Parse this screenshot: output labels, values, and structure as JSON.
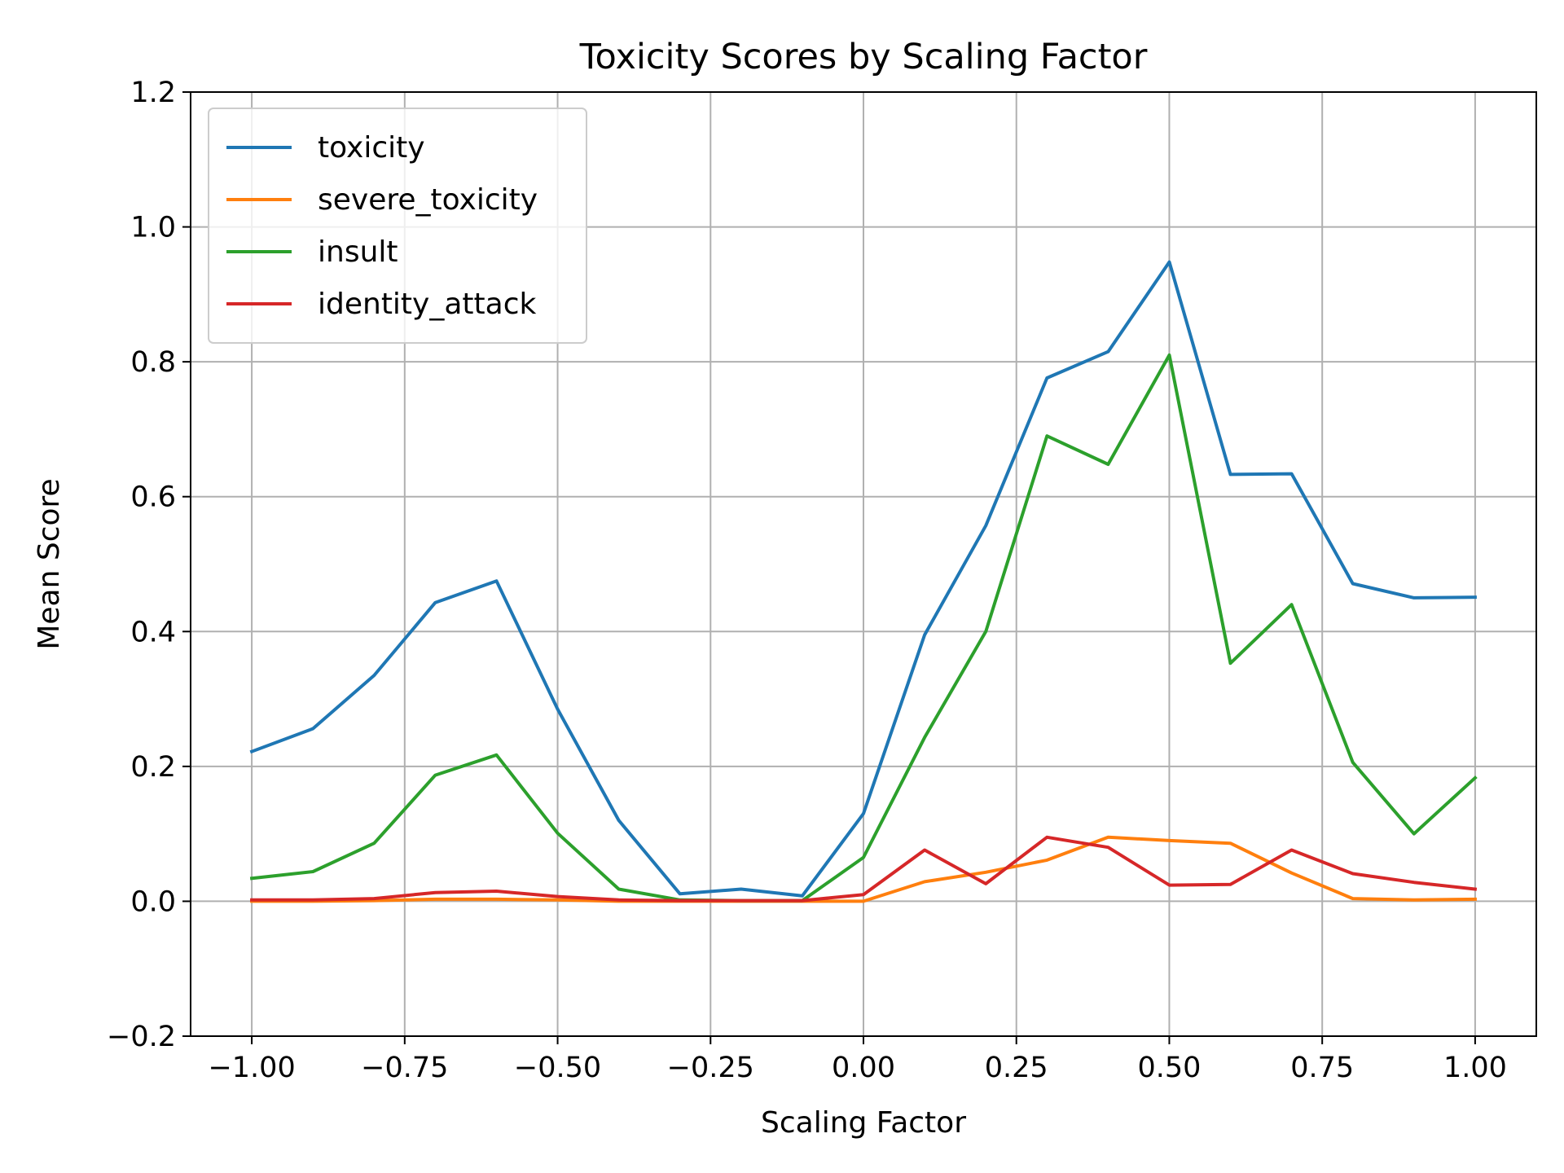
{
  "chart_data": {
    "type": "line",
    "title": "Toxicity Scores by Scaling Factor",
    "xlabel": "Scaling Factor",
    "ylabel": "Mean Score",
    "xlim": [
      -1.1,
      1.1
    ],
    "ylim": [
      -0.2,
      1.2
    ],
    "xticks": [
      -1.0,
      -0.75,
      -0.5,
      -0.25,
      0.0,
      0.25,
      0.5,
      0.75,
      1.0
    ],
    "xtick_labels": [
      "−1.00",
      "−0.75",
      "−0.50",
      "−0.25",
      "0.00",
      "0.25",
      "0.50",
      "0.75",
      "1.00"
    ],
    "yticks": [
      -0.2,
      0.0,
      0.2,
      0.4,
      0.6,
      0.8,
      1.0,
      1.2
    ],
    "ytick_labels": [
      "−0.2",
      "0.0",
      "0.2",
      "0.4",
      "0.6",
      "0.8",
      "1.0",
      "1.2"
    ],
    "grid": true,
    "legend_position": "top-left",
    "x": [
      -1.0,
      -0.9,
      -0.8,
      -0.7,
      -0.6,
      -0.5,
      -0.4,
      -0.3,
      -0.2,
      -0.1,
      0.0,
      0.1,
      0.2,
      0.3,
      0.4,
      0.5,
      0.6,
      0.7,
      0.8,
      0.9,
      1.0
    ],
    "series": [
      {
        "name": "toxicity",
        "color": "#1f77b4",
        "values": [
          0.222,
          0.256,
          0.335,
          0.443,
          0.475,
          0.285,
          0.12,
          0.011,
          0.018,
          0.008,
          0.13,
          0.395,
          0.557,
          0.776,
          0.815,
          0.948,
          0.633,
          0.634,
          0.471,
          0.45,
          0.451
        ]
      },
      {
        "name": "severe_toxicity",
        "color": "#ff7f0e",
        "values": [
          0.0,
          0.0,
          0.001,
          0.003,
          0.003,
          0.002,
          0.0,
          0.0,
          0.0,
          0.0,
          0.0,
          0.029,
          0.043,
          0.061,
          0.095,
          0.09,
          0.086,
          0.042,
          0.004,
          0.002,
          0.003
        ]
      },
      {
        "name": "insult",
        "color": "#2ca02c",
        "values": [
          0.034,
          0.044,
          0.086,
          0.187,
          0.217,
          0.101,
          0.018,
          0.002,
          0.001,
          0.001,
          0.065,
          0.243,
          0.4,
          0.69,
          0.648,
          0.81,
          0.353,
          0.44,
          0.206,
          0.1,
          0.183
        ]
      },
      {
        "name": "identity_attack",
        "color": "#d62728",
        "values": [
          0.002,
          0.002,
          0.004,
          0.013,
          0.015,
          0.007,
          0.002,
          0.001,
          0.001,
          0.001,
          0.01,
          0.076,
          0.026,
          0.095,
          0.08,
          0.024,
          0.025,
          0.076,
          0.041,
          0.028,
          0.018
        ]
      }
    ]
  }
}
